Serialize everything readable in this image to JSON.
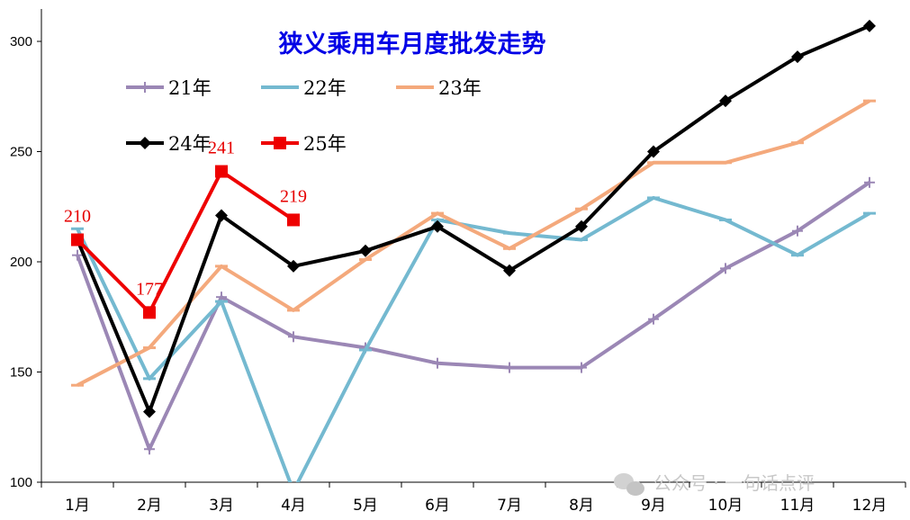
{
  "chart_data": {
    "type": "line",
    "title": "狭义乘用车月度批发走势",
    "categories": [
      "1月",
      "2月",
      "3月",
      "4月",
      "5月",
      "6月",
      "7月",
      "8月",
      "9月",
      "10月",
      "11月",
      "12月"
    ],
    "ylim": [
      100,
      310
    ],
    "yticks": [
      "100",
      "150",
      "200",
      "250",
      "300"
    ],
    "grid": false,
    "legend_position": "top-left",
    "series": [
      {
        "name": "21年",
        "color": "#9b87b5",
        "marker": "plus",
        "values": [
          203,
          115,
          184,
          166,
          161,
          154,
          152,
          152,
          174,
          197,
          214,
          236
        ]
      },
      {
        "name": "22年",
        "color": "#74b9d0",
        "marker": "dash",
        "values": [
          215,
          147,
          182,
          96,
          160,
          219,
          213,
          210,
          229,
          219,
          203,
          222
        ]
      },
      {
        "name": "23年",
        "color": "#f4a97c",
        "marker": "dash",
        "values": [
          144,
          161,
          198,
          178,
          201,
          222,
          206,
          224,
          245,
          245,
          254,
          273
        ]
      },
      {
        "name": "24年",
        "color": "#000000",
        "marker": "diamond",
        "values": [
          210,
          132,
          221,
          198,
          205,
          216,
          196,
          216,
          250,
          273,
          293,
          307
        ]
      },
      {
        "name": "25年",
        "color": "#ee0000",
        "marker": "square",
        "values": [
          210,
          177,
          241,
          219,
          null,
          null,
          null,
          null,
          null,
          null,
          null,
          null
        ],
        "data_labels": [
          "210",
          "177",
          "241",
          "219"
        ]
      }
    ]
  },
  "watermark": "公众号 · 一句话点评"
}
